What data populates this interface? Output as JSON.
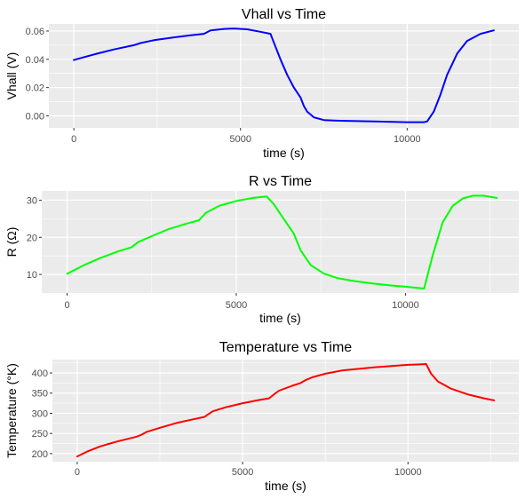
{
  "chart_data": [
    {
      "type": "line",
      "title": "Vhall vs Time",
      "xlabel": "time (s)",
      "ylabel": "Vhall (V)",
      "xlim": [
        -750,
        13350
      ],
      "ylim": [
        -0.0085,
        0.065
      ],
      "xticks": [
        0,
        5000,
        10000
      ],
      "yticks": [
        0.0,
        0.02,
        0.04,
        0.06
      ],
      "ytick_labels": [
        "0.00",
        "0.02",
        "0.04",
        "0.06"
      ],
      "grid": true,
      "color": "#0000ff",
      "series": [
        {
          "x": [
            0,
            300,
            700,
            1200,
            1800,
            2000,
            2400,
            3000,
            3500,
            3900,
            4100,
            4500,
            4800,
            5200,
            5600,
            5900,
            6000,
            6200,
            6400,
            6600,
            6800,
            6900,
            7000,
            7200,
            7500,
            8000,
            9000,
            10000,
            10500,
            10600,
            10800,
            11000,
            11200,
            11500,
            11800,
            12200,
            12600
          ],
          "y": [
            0.0395,
            0.0415,
            0.044,
            0.047,
            0.05,
            0.0515,
            0.0535,
            0.0555,
            0.057,
            0.058,
            0.0605,
            0.0615,
            0.0618,
            0.0612,
            0.0595,
            0.058,
            0.052,
            0.04,
            0.029,
            0.02,
            0.013,
            0.007,
            0.003,
            -0.001,
            -0.003,
            -0.0035,
            -0.004,
            -0.0045,
            -0.0045,
            -0.004,
            0.003,
            0.015,
            0.029,
            0.044,
            0.053,
            0.058,
            0.0605
          ]
        }
      ]
    },
    {
      "type": "line",
      "title": "R vs Time",
      "xlabel": "time (s)",
      "ylabel": "R (Ω)",
      "xlim": [
        -750,
        13350
      ],
      "ylim": [
        5.0,
        32.5
      ],
      "xticks": [
        0,
        5000,
        10000
      ],
      "yticks": [
        10,
        20,
        30
      ],
      "ytick_labels": [
        "10",
        "20",
        "30"
      ],
      "grid": true,
      "color": "#00ff00",
      "series": [
        {
          "x": [
            0,
            500,
            1000,
            1500,
            1900,
            2100,
            2500,
            3000,
            3500,
            3900,
            4100,
            4500,
            5000,
            5500,
            5900,
            6100,
            6400,
            6700,
            6900,
            7200,
            7600,
            8000,
            8500,
            9000,
            9500,
            10000,
            10550,
            10800,
            11100,
            11400,
            11700,
            12000,
            12300,
            12700
          ],
          "y": [
            10.2,
            12.5,
            14.5,
            16.2,
            17.3,
            18.7,
            20.3,
            22.2,
            23.6,
            24.6,
            26.6,
            28.5,
            29.8,
            30.6,
            31.0,
            29.0,
            25.0,
            21.0,
            16.5,
            12.5,
            10.2,
            9.0,
            8.2,
            7.6,
            7.1,
            6.7,
            6.2,
            15.0,
            24.0,
            28.5,
            30.5,
            31.2,
            31.2,
            30.6
          ]
        }
      ]
    },
    {
      "type": "line",
      "title": "Temperature vs Time",
      "xlabel": "time (s)",
      "ylabel": "Temperature (°K)",
      "xlim": [
        -750,
        13350
      ],
      "ylim": [
        180,
        433
      ],
      "xticks": [
        0,
        5000,
        10000
      ],
      "yticks": [
        200,
        250,
        300,
        350,
        400
      ],
      "ytick_labels": [
        "200",
        "250",
        "300",
        "350",
        "400"
      ],
      "grid": true,
      "color": "#ff0000",
      "series": [
        {
          "x": [
            0,
            300,
            700,
            1200,
            1800,
            1950,
            2100,
            2500,
            3000,
            3500,
            3850,
            3950,
            4100,
            4500,
            5000,
            5500,
            5800,
            5950,
            6100,
            6500,
            6750,
            6900,
            7100,
            7500,
            8000,
            9000,
            10000,
            10300,
            10550,
            10700,
            10900,
            11300,
            11800,
            12300,
            12600
          ],
          "y": [
            193,
            205,
            218,
            230,
            242,
            247,
            254,
            264,
            276,
            285,
            291,
            297,
            305,
            315,
            325,
            333,
            337,
            347,
            356,
            368,
            375,
            382,
            389,
            398,
            406,
            414,
            420,
            421,
            422,
            398,
            379,
            361,
            347,
            337,
            332
          ]
        }
      ]
    }
  ]
}
